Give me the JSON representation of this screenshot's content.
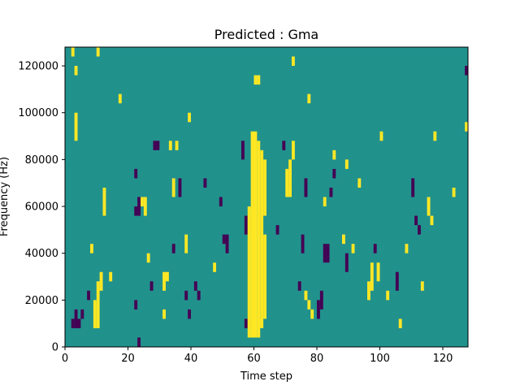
{
  "chart_data": {
    "type": "heatmap",
    "title": "Predicted : Gma",
    "xlabel": "Time step",
    "ylabel": "Frequency (Hz)",
    "xlim": [
      0,
      128
    ],
    "ylim": [
      0,
      128000
    ],
    "x_ticks": [
      0,
      20,
      40,
      60,
      80,
      100,
      120
    ],
    "y_ticks": [
      0,
      20000,
      40000,
      60000,
      80000,
      100000,
      120000
    ],
    "x_tick_labels": [
      "0",
      "20",
      "40",
      "60",
      "80",
      "100",
      "120"
    ],
    "y_tick_labels": [
      "0",
      "20000",
      "40000",
      "60000",
      "80000",
      "100000",
      "120000"
    ],
    "grid": false,
    "legend": "none",
    "colormap": "viridis",
    "value_levels": [
      -1,
      0,
      1
    ],
    "colors": {
      "-1": "#440154",
      "0": "#21918c",
      "1": "#fde725"
    },
    "background_value": 0,
    "cell_size": {
      "time": 1,
      "frequency_hz": 4000
    },
    "high_cells": [
      [
        58,
        4000,
        60000
      ],
      [
        59,
        4000,
        92000
      ],
      [
        60,
        4000,
        92000
      ],
      [
        61,
        4000,
        88000
      ],
      [
        62,
        8000,
        84000
      ],
      [
        63,
        12000,
        48000
      ],
      [
        63,
        56000,
        80000
      ],
      [
        60,
        112000,
        116000
      ],
      [
        61,
        112000,
        116000
      ],
      [
        2,
        124000,
        128000
      ],
      [
        3,
        116000,
        120000
      ],
      [
        3,
        88000,
        100000
      ],
      [
        10,
        124000,
        128000
      ],
      [
        8,
        40000,
        44000
      ],
      [
        9,
        8000,
        20000
      ],
      [
        10,
        8000,
        28000
      ],
      [
        11,
        24000,
        32000
      ],
      [
        12,
        56000,
        68000
      ],
      [
        14,
        28000,
        32000
      ],
      [
        17,
        104000,
        108000
      ],
      [
        24,
        60000,
        64000
      ],
      [
        25,
        56000,
        64000
      ],
      [
        26,
        36000,
        40000
      ],
      [
        31,
        12000,
        16000
      ],
      [
        31,
        24000,
        32000
      ],
      [
        32,
        28000,
        32000
      ],
      [
        33,
        84000,
        88000
      ],
      [
        34,
        64000,
        72000
      ],
      [
        35,
        84000,
        88000
      ],
      [
        38,
        40000,
        48000
      ],
      [
        39,
        96000,
        100000
      ],
      [
        47,
        32000,
        36000
      ],
      [
        61,
        8000,
        12000
      ],
      [
        70,
        64000,
        76000
      ],
      [
        71,
        64000,
        80000
      ],
      [
        72,
        120000,
        124000
      ],
      [
        72,
        80000,
        88000
      ],
      [
        76,
        20000,
        24000
      ],
      [
        77,
        104000,
        108000
      ],
      [
        77,
        16000,
        20000
      ],
      [
        78,
        12000,
        16000
      ],
      [
        82,
        60000,
        64000
      ],
      [
        85,
        80000,
        84000
      ],
      [
        88,
        44000,
        48000
      ],
      [
        89,
        76000,
        80000
      ],
      [
        91,
        40000,
        44000
      ],
      [
        93,
        68000,
        72000
      ],
      [
        96,
        20000,
        28000
      ],
      [
        97,
        24000,
        36000
      ],
      [
        99,
        28000,
        36000
      ],
      [
        100,
        88000,
        92000
      ],
      [
        102,
        20000,
        24000
      ],
      [
        106,
        8000,
        12000
      ],
      [
        108,
        40000,
        44000
      ],
      [
        113,
        24000,
        28000
      ],
      [
        115,
        56000,
        64000
      ],
      [
        116,
        52000,
        56000
      ],
      [
        117,
        88000,
        92000
      ],
      [
        123,
        64000,
        68000
      ],
      [
        127,
        92000,
        96000
      ]
    ],
    "low_cells": [
      [
        2,
        8000,
        12000
      ],
      [
        3,
        8000,
        16000
      ],
      [
        4,
        8000,
        12000
      ],
      [
        5,
        12000,
        16000
      ],
      [
        7,
        20000,
        24000
      ],
      [
        22,
        16000,
        20000
      ],
      [
        23,
        0,
        4000
      ],
      [
        22,
        72000,
        76000
      ],
      [
        22,
        56000,
        60000
      ],
      [
        23,
        56000,
        64000
      ],
      [
        27,
        24000,
        28000
      ],
      [
        28,
        84000,
        88000
      ],
      [
        29,
        84000,
        88000
      ],
      [
        34,
        40000,
        44000
      ],
      [
        36,
        64000,
        72000
      ],
      [
        38,
        20000,
        24000
      ],
      [
        39,
        12000,
        16000
      ],
      [
        41,
        24000,
        28000
      ],
      [
        42,
        20000,
        24000
      ],
      [
        44,
        68000,
        72000
      ],
      [
        49,
        60000,
        64000
      ],
      [
        50,
        44000,
        48000
      ],
      [
        51,
        40000,
        48000
      ],
      [
        57,
        8000,
        12000
      ],
      [
        56,
        80000,
        88000
      ],
      [
        57,
        48000,
        56000
      ],
      [
        67,
        48000,
        52000
      ],
      [
        69,
        84000,
        88000
      ],
      [
        71,
        68000,
        76000
      ],
      [
        74,
        24000,
        28000
      ],
      [
        75,
        40000,
        48000
      ],
      [
        76,
        64000,
        72000
      ],
      [
        80,
        12000,
        20000
      ],
      [
        81,
        16000,
        24000
      ],
      [
        82,
        36000,
        44000
      ],
      [
        83,
        36000,
        44000
      ],
      [
        84,
        64000,
        68000
      ],
      [
        85,
        72000,
        76000
      ],
      [
        89,
        32000,
        40000
      ],
      [
        98,
        40000,
        44000
      ],
      [
        105,
        24000,
        32000
      ],
      [
        111,
        52000,
        56000
      ],
      [
        112,
        48000,
        52000
      ],
      [
        110,
        64000,
        72000
      ],
      [
        128,
        116000,
        120000
      ],
      [
        127,
        116000,
        120000
      ]
    ]
  }
}
